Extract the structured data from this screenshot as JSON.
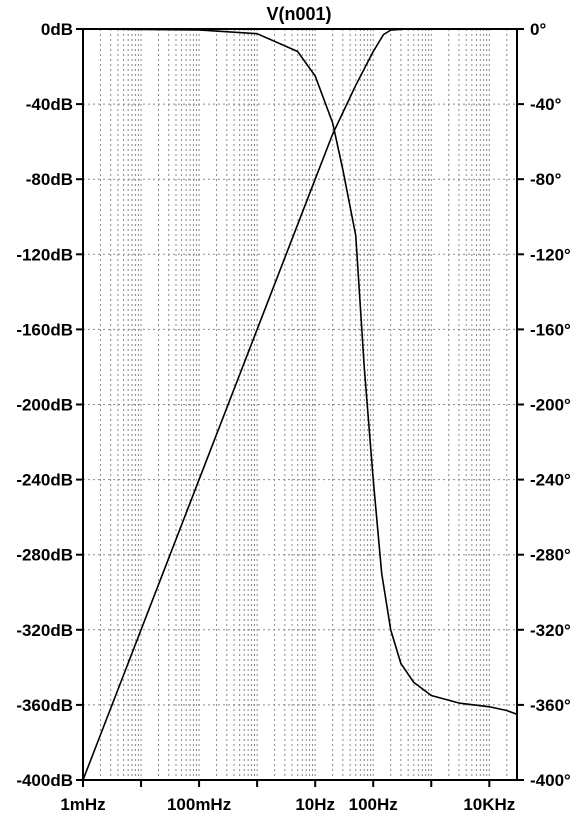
{
  "chart_data": {
    "type": "line",
    "title": "V(n001)",
    "x_scale": "log",
    "xlim_hz": [
      0.001,
      30000
    ],
    "x_ticks": [
      {
        "value": 0.001,
        "label": "1mHz"
      },
      {
        "value": 0.1,
        "label": "100mHz"
      },
      {
        "value": 10,
        "label": "10Hz"
      },
      {
        "value": 100,
        "label": "100Hz"
      },
      {
        "value": 10000,
        "label": "10KHz"
      }
    ],
    "y_left": {
      "unit": "dB",
      "range": [
        -400,
        0
      ],
      "ticks": [
        {
          "value": 0,
          "label": "0dB"
        },
        {
          "value": -40,
          "label": "-40dB"
        },
        {
          "value": -80,
          "label": "-80dB"
        },
        {
          "value": -120,
          "label": "-120dB"
        },
        {
          "value": -160,
          "label": "-160dB"
        },
        {
          "value": -200,
          "label": "-200dB"
        },
        {
          "value": -240,
          "label": "-240dB"
        },
        {
          "value": -280,
          "label": "-280dB"
        },
        {
          "value": -320,
          "label": "-320dB"
        },
        {
          "value": -360,
          "label": "-360dB"
        },
        {
          "value": -400,
          "label": "-400dB"
        }
      ]
    },
    "y_right": {
      "unit": "degrees",
      "range": [
        -400,
        0
      ],
      "ticks": [
        {
          "value": 0,
          "label": "0°"
        },
        {
          "value": -40,
          "label": "-40°"
        },
        {
          "value": -80,
          "label": "-80°"
        },
        {
          "value": -120,
          "label": "-120°"
        },
        {
          "value": -160,
          "label": "-160°"
        },
        {
          "value": -200,
          "label": "-200°"
        },
        {
          "value": -240,
          "label": "-240°"
        },
        {
          "value": -280,
          "label": "-280°"
        },
        {
          "value": -320,
          "label": "-320°"
        },
        {
          "value": -360,
          "label": "-360°"
        },
        {
          "value": -400,
          "label": "-400°"
        }
      ]
    },
    "grid": true,
    "series": [
      {
        "axis": "left",
        "color": "#000000",
        "points": [
          [
            0.001,
            -400
          ],
          [
            0.01,
            -320
          ],
          [
            0.1,
            -240
          ],
          [
            1,
            -160
          ],
          [
            10,
            -80
          ],
          [
            20,
            -56
          ],
          [
            50,
            -30
          ],
          [
            100,
            -12
          ],
          [
            150,
            -3
          ],
          [
            200,
            -0.6
          ],
          [
            400,
            0
          ],
          [
            30000,
            0
          ]
        ]
      },
      {
        "axis": "right",
        "color": "#000000",
        "points": [
          [
            0.001,
            0
          ],
          [
            0.1,
            -0.5
          ],
          [
            1,
            -2.5
          ],
          [
            5,
            -12
          ],
          [
            10,
            -25
          ],
          [
            20,
            -50
          ],
          [
            30,
            -75
          ],
          [
            50,
            -110
          ],
          [
            70,
            -180
          ],
          [
            100,
            -240
          ],
          [
            140,
            -290
          ],
          [
            200,
            -320
          ],
          [
            300,
            -338
          ],
          [
            500,
            -348
          ],
          [
            1000,
            -355
          ],
          [
            3000,
            -359
          ],
          [
            10000,
            -361
          ],
          [
            20000,
            -363
          ],
          [
            30000,
            -365
          ]
        ]
      }
    ]
  }
}
